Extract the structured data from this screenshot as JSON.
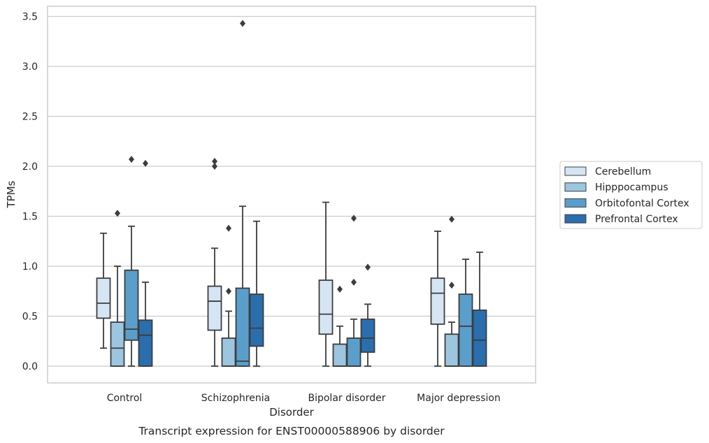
{
  "chart_data": {
    "type": "box",
    "caption": "Transcript expression for ENST00000588906 by disorder",
    "xlabel": "Disorder",
    "ylabel": "TPMs",
    "ylim": [
      -0.17,
      3.6
    ],
    "yticks": [
      0.0,
      0.5,
      1.0,
      1.5,
      2.0,
      2.5,
      3.0,
      3.5
    ],
    "ytick_labels": [
      "0.0",
      "0.5",
      "1.0",
      "1.5",
      "2.0",
      "2.5",
      "3.0",
      "3.5"
    ],
    "grid": "horizontal",
    "legend_position": "right",
    "categories": [
      "Control",
      "Schizophrenia",
      "Bipolar disorder",
      "Major depression"
    ],
    "series": [
      {
        "name": "Cerebellum",
        "color": "#d6e5f4",
        "boxes": [
          {
            "whislo": 0.18,
            "q1": 0.48,
            "med": 0.63,
            "q3": 0.88,
            "whishi": 1.33,
            "fliers": []
          },
          {
            "whislo": 0.0,
            "q1": 0.36,
            "med": 0.65,
            "q3": 0.8,
            "whishi": 1.18,
            "fliers": [
              2.0,
              2.05
            ]
          },
          {
            "whislo": 0.0,
            "q1": 0.32,
            "med": 0.52,
            "q3": 0.86,
            "whishi": 1.64,
            "fliers": []
          },
          {
            "whislo": 0.0,
            "q1": 0.42,
            "med": 0.73,
            "q3": 0.88,
            "whishi": 1.35,
            "fliers": []
          }
        ]
      },
      {
        "name": "Hipppocampus",
        "color": "#9cc5df",
        "boxes": [
          {
            "whislo": 0.0,
            "q1": 0.0,
            "med": 0.18,
            "q3": 0.44,
            "whishi": 1.0,
            "fliers": [
              1.53
            ]
          },
          {
            "whislo": 0.0,
            "q1": 0.0,
            "med": 0.0,
            "q3": 0.28,
            "whishi": 0.55,
            "fliers": [
              0.75,
              1.38
            ]
          },
          {
            "whislo": 0.0,
            "q1": 0.0,
            "med": 0.0,
            "q3": 0.22,
            "whishi": 0.4,
            "fliers": [
              0.77
            ]
          },
          {
            "whislo": 0.0,
            "q1": 0.0,
            "med": 0.0,
            "q3": 0.32,
            "whishi": 0.44,
            "fliers": [
              0.81,
              1.47
            ]
          }
        ]
      },
      {
        "name": "Orbitofontal Cortex",
        "color": "#5a9ecb",
        "boxes": [
          {
            "whislo": 0.0,
            "q1": 0.26,
            "med": 0.37,
            "q3": 0.96,
            "whishi": 1.4,
            "fliers": [
              2.07
            ]
          },
          {
            "whislo": 0.0,
            "q1": 0.0,
            "med": 0.05,
            "q3": 0.78,
            "whishi": 1.6,
            "fliers": [
              3.43
            ]
          },
          {
            "whislo": 0.0,
            "q1": 0.0,
            "med": 0.0,
            "q3": 0.28,
            "whishi": 0.47,
            "fliers": [
              0.84,
              1.48
            ]
          },
          {
            "whislo": 0.0,
            "q1": 0.0,
            "med": 0.4,
            "q3": 0.72,
            "whishi": 1.07,
            "fliers": []
          }
        ]
      },
      {
        "name": "Prefrontal Cortex",
        "color": "#2a6ead",
        "boxes": [
          {
            "whislo": 0.0,
            "q1": 0.0,
            "med": 0.31,
            "q3": 0.46,
            "whishi": 0.84,
            "fliers": [
              2.03
            ]
          },
          {
            "whislo": 0.0,
            "q1": 0.2,
            "med": 0.38,
            "q3": 0.72,
            "whishi": 1.45,
            "fliers": []
          },
          {
            "whislo": 0.0,
            "q1": 0.14,
            "med": 0.28,
            "q3": 0.47,
            "whishi": 0.62,
            "fliers": [
              0.99
            ]
          },
          {
            "whislo": 0.0,
            "q1": 0.0,
            "med": 0.26,
            "q3": 0.56,
            "whishi": 1.14,
            "fliers": []
          }
        ]
      }
    ]
  }
}
